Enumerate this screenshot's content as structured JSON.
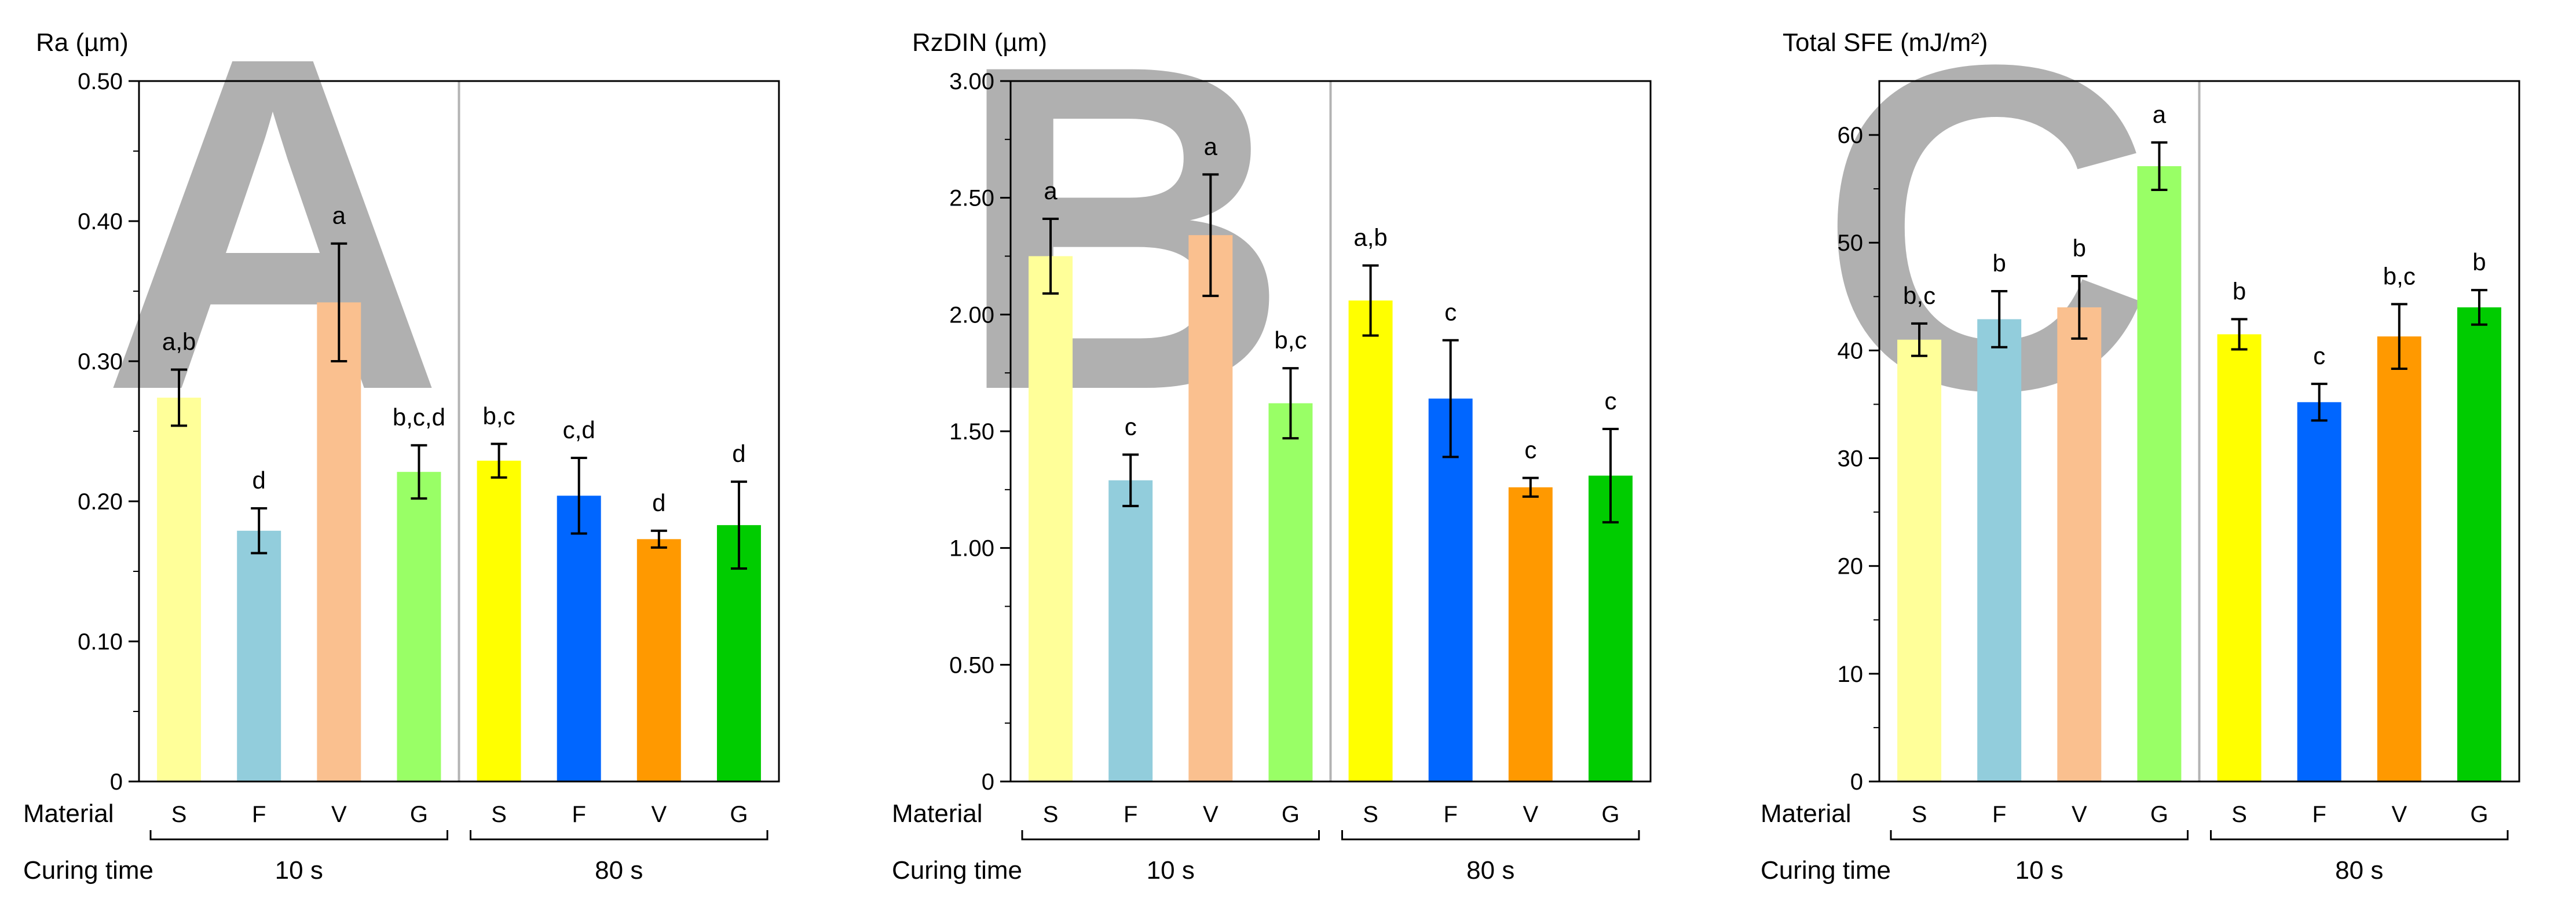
{
  "chart_data": [
    {
      "type": "bar",
      "panel_letter": "A",
      "title": "Ra (µm)",
      "row_labels": {
        "material": "Material",
        "curing": "Curing time"
      },
      "groups": [
        {
          "label": "10 s"
        },
        {
          "label": "80 s"
        }
      ],
      "categories": [
        "S",
        "F",
        "V",
        "G",
        "S",
        "F",
        "V",
        "G"
      ],
      "values": [
        0.274,
        0.179,
        0.342,
        0.221,
        0.229,
        0.204,
        0.173,
        0.183
      ],
      "errors": [
        0.02,
        0.016,
        0.042,
        0.019,
        0.012,
        0.027,
        0.006,
        0.031
      ],
      "significance": [
        "a,b",
        "d",
        "a",
        "b,c,d",
        "b,c",
        "c,d",
        "d",
        "d"
      ],
      "colors": [
        "#ffff99",
        "#92cddc",
        "#fac08f",
        "#99ff66",
        "#ffff00",
        "#0066ff",
        "#ff9900",
        "#00cc00"
      ],
      "ylim": [
        0,
        0.5
      ],
      "yticks": [
        0,
        0.1,
        0.2,
        0.3,
        0.4,
        0.5
      ],
      "ytick_labels": [
        "0",
        "0.10",
        "0.20",
        "0.30",
        "0.40",
        "0.50"
      ]
    },
    {
      "type": "bar",
      "panel_letter": "B",
      "title": "RzDIN (µm)",
      "row_labels": {
        "material": "Material",
        "curing": "Curing time"
      },
      "groups": [
        {
          "label": "10 s"
        },
        {
          "label": "80 s"
        }
      ],
      "categories": [
        "S",
        "F",
        "V",
        "G",
        "S",
        "F",
        "V",
        "G"
      ],
      "values": [
        2.25,
        1.29,
        2.34,
        1.62,
        2.06,
        1.64,
        1.26,
        1.31
      ],
      "errors": [
        0.16,
        0.11,
        0.26,
        0.15,
        0.15,
        0.25,
        0.04,
        0.2
      ],
      "significance": [
        "a",
        "c",
        "a",
        "b,c",
        "a,b",
        "c",
        "c",
        "c"
      ],
      "colors": [
        "#ffff99",
        "#92cddc",
        "#fac08f",
        "#99ff66",
        "#ffff00",
        "#0066ff",
        "#ff9900",
        "#00cc00"
      ],
      "ylim": [
        0,
        3.0
      ],
      "yticks": [
        0,
        0.5,
        1.0,
        1.5,
        2.0,
        2.5,
        3.0
      ],
      "ytick_labels": [
        "0",
        "0.50",
        "1.00",
        "1.50",
        "2.00",
        "2.50",
        "3.00"
      ]
    },
    {
      "type": "bar",
      "panel_letter": "C",
      "title": "Total SFE (mJ/m²)",
      "row_labels": {
        "material": "Material",
        "curing": "Curing time"
      },
      "groups": [
        {
          "label": "10 s"
        },
        {
          "label": "80 s"
        }
      ],
      "categories": [
        "S",
        "F",
        "V",
        "G",
        "S",
        "F",
        "V",
        "G"
      ],
      "values": [
        41.0,
        42.9,
        44.0,
        57.1,
        41.5,
        35.2,
        41.3,
        44.0
      ],
      "errors": [
        1.5,
        2.6,
        2.9,
        2.2,
        1.4,
        1.7,
        3.0,
        1.6
      ],
      "significance": [
        "b,c",
        "b",
        "b",
        "a",
        "b",
        "c",
        "b,c",
        "b"
      ],
      "colors": [
        "#ffff99",
        "#92cddc",
        "#fac08f",
        "#99ff66",
        "#ffff00",
        "#0066ff",
        "#ff9900",
        "#00cc00"
      ],
      "ylim": [
        0,
        65
      ],
      "yticks": [
        0,
        10,
        20,
        30,
        40,
        50,
        60
      ],
      "ytick_labels": [
        "0",
        "10",
        "20",
        "30",
        "40",
        "50",
        "60"
      ]
    }
  ]
}
